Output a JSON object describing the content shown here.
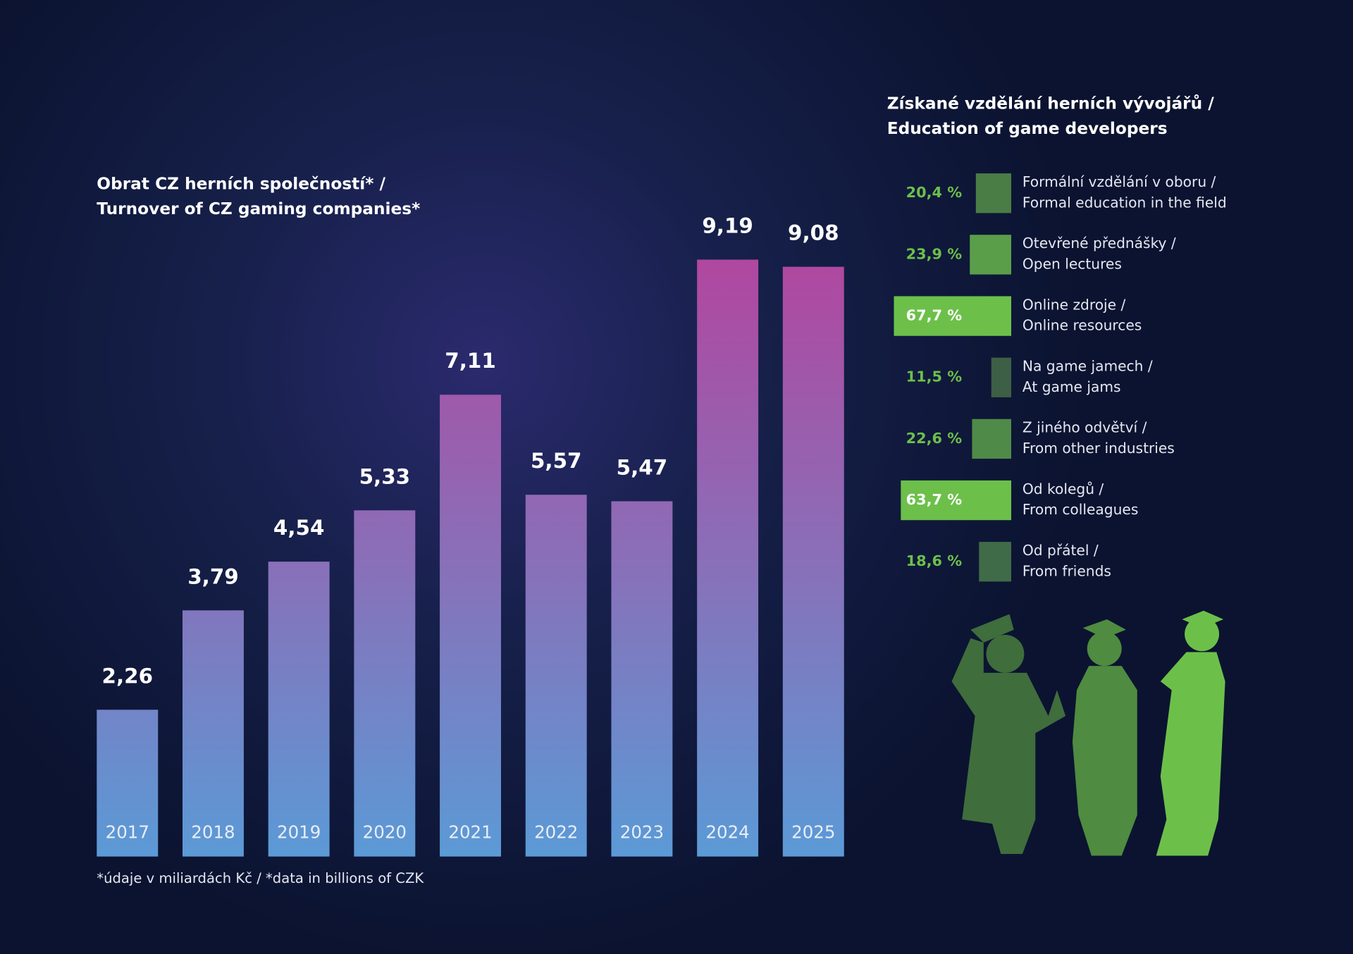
{
  "chart_data": [
    {
      "type": "bar",
      "title": [
        "Obrat CZ herních společností* /",
        "Turnover of CZ gaming companies*"
      ],
      "categories": [
        "2017",
        "2018",
        "2019",
        "2020",
        "2021",
        "2022",
        "2023",
        "2024",
        "2025"
      ],
      "values": [
        2.26,
        3.79,
        4.54,
        5.33,
        7.11,
        5.57,
        5.47,
        9.19,
        9.08
      ],
      "value_labels": [
        "2,26",
        "3,79",
        "4,54",
        "5,33",
        "7,11",
        "5,57",
        "5,47",
        "9,19",
        "9,08"
      ],
      "colors": [
        "#5b9ad6",
        "#8a6fb8",
        "#b0479f"
      ],
      "note": "*údaje v miliardách Kč / *data in billions of CZK"
    },
    {
      "type": "hbar",
      "title": [
        "Získané vzdělání herních vývojářů /",
        "Education of game developers"
      ],
      "categories": [
        [
          "Formální vzdělání v oboru /",
          "Formal education in the field"
        ],
        [
          "Otevřené přednášky /",
          "Open lectures"
        ],
        [
          "Online zdroje /",
          "Online resources"
        ],
        [
          "Na game jamech /",
          "At game jams"
        ],
        [
          "Z jiného odvětví /",
          "From other industries"
        ],
        [
          "Od kolegů /",
          "From colleagues"
        ],
        [
          "Od přátel /",
          "From friends"
        ]
      ],
      "values": [
        20.4,
        23.9,
        67.7,
        11.5,
        22.6,
        63.7,
        18.6
      ],
      "value_labels": [
        "20,4 %",
        "23,9 %",
        "67,7 %",
        "11,5 %",
        "22,6 %",
        "63,7 %",
        "18,6 %"
      ],
      "colors": [
        "#4a7d45",
        "#5a9e4a",
        "#6cc04a",
        "#3d5f45",
        "#508a48",
        "#6cc04a",
        "#3f6b48"
      ]
    }
  ]
}
